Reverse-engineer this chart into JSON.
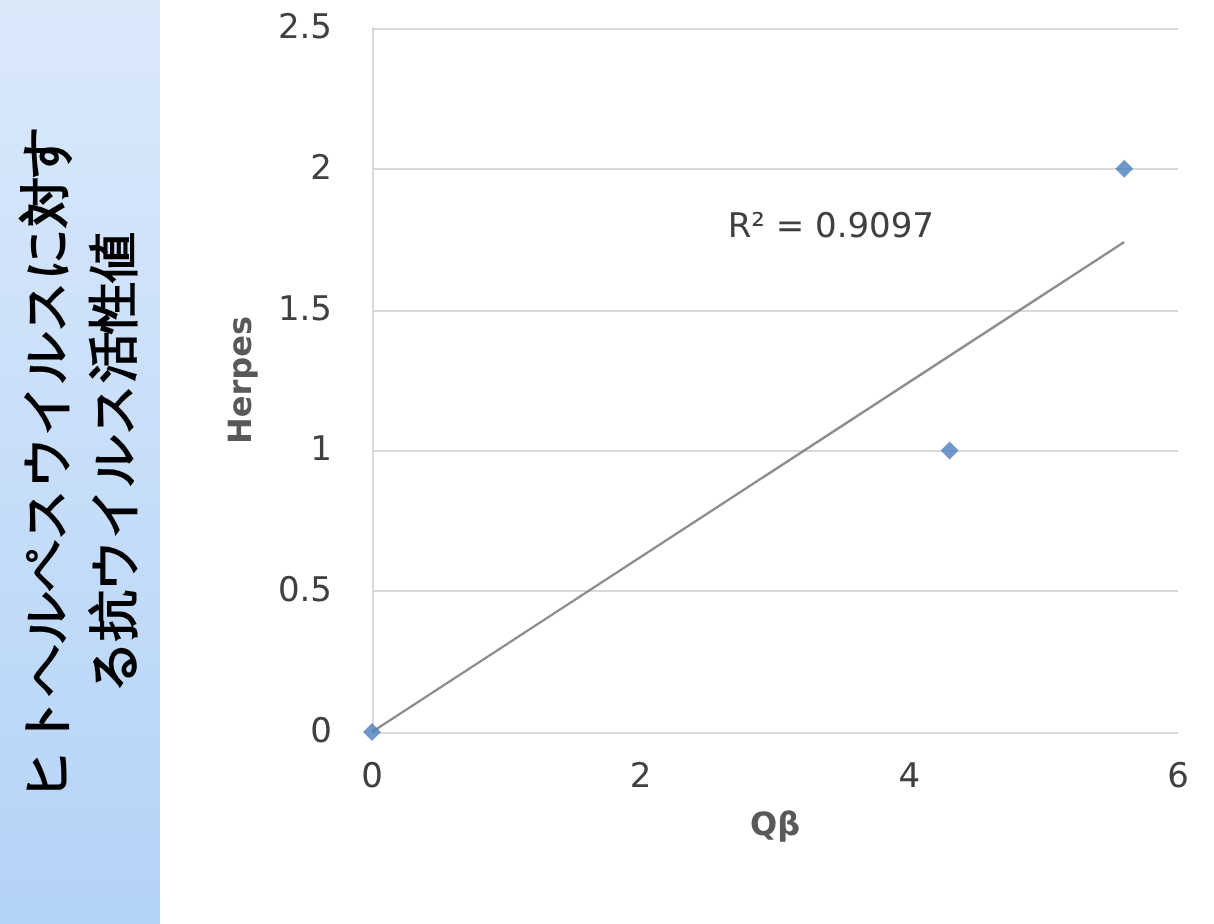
{
  "chart_data": {
    "type": "scatter",
    "title": "ヒトヘルペスウイルスに対する抗ウイルス活性値",
    "xlabel": "Qβ",
    "ylabel": "Herpes",
    "annotations": [
      "R² = 0.9097"
    ],
    "marker": "diamond",
    "grid": "y",
    "xlim": [
      0,
      6
    ],
    "xticks": [
      0,
      2,
      4,
      6
    ],
    "ylim": [
      0,
      2.5
    ],
    "yticks": [
      0,
      0.5,
      1,
      1.5,
      2,
      2.5
    ],
    "series": [
      {
        "color": "#4a7ebb",
        "x": [
          0,
          4.3,
          5.6
        ],
        "values": [
          0,
          1,
          2
        ]
      },
      {
        "type": "line",
        "color": "#8c8c8c",
        "marker": "none",
        "x": [
          0,
          5.6
        ],
        "values": [
          0,
          1.74
        ]
      }
    ]
  }
}
